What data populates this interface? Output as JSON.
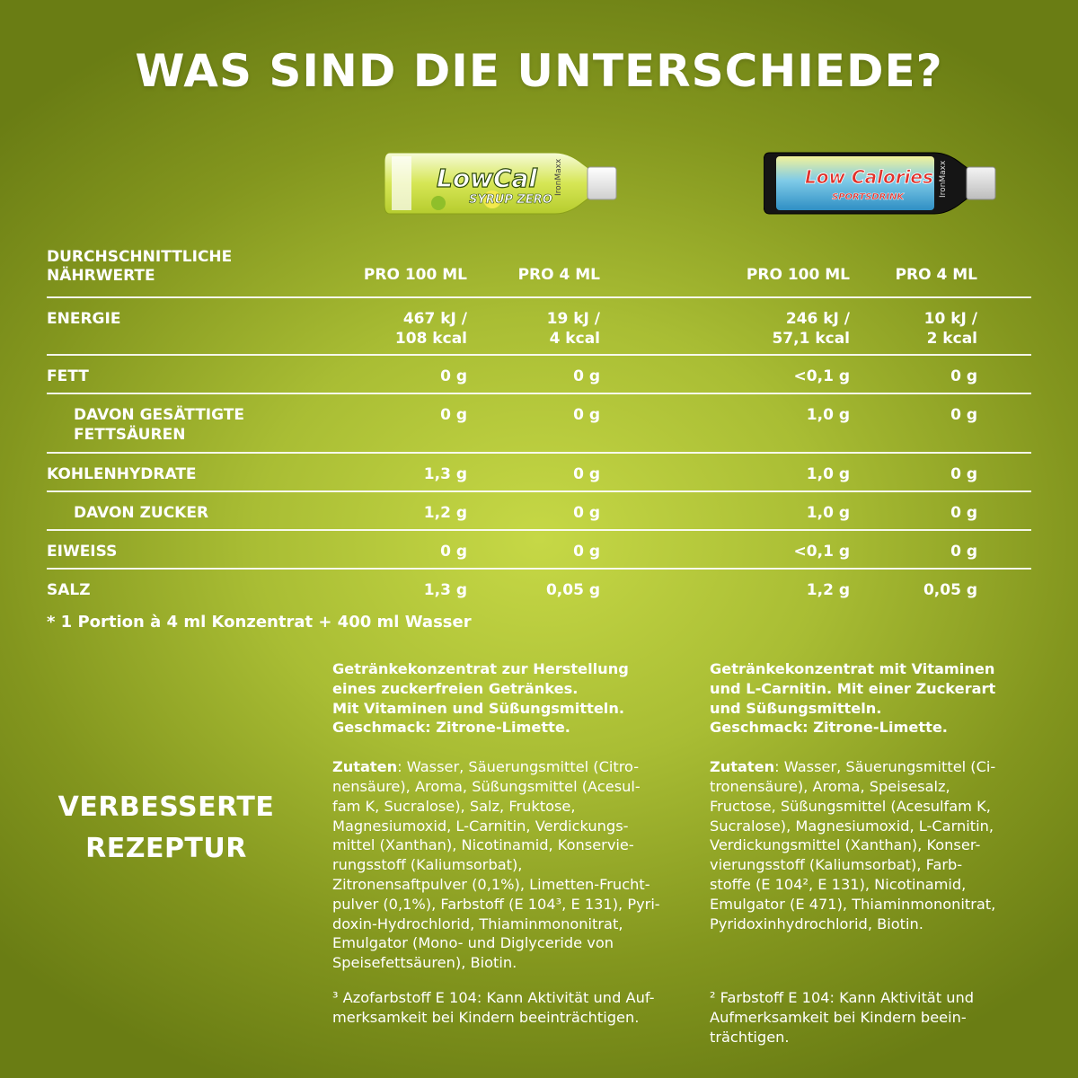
{
  "title": "WAS SIND DIE UNTERSCHIEDE?",
  "products": [
    {
      "brand": "LowCal",
      "sub": "SYRUP ZERO",
      "maker": "IronMaxx",
      "colors": {
        "cap": "#f2f2f2",
        "label": "#d9e85a",
        "text": "#ffffff"
      }
    },
    {
      "brand": "Low Calories",
      "sub": "SPORTSDRINK",
      "maker": "IronMaxx",
      "colors": {
        "cap": "#1b1b1b",
        "label": "#58b6e0",
        "text": "#e0312a"
      }
    }
  ],
  "table": {
    "header_label": "DURCHSCHNITTLICHE\nNÄHRWERTE",
    "columns": [
      "PRO 100 ML",
      "PRO 4 ML",
      "PRO 100 ML",
      "PRO 4 ML"
    ],
    "rows": [
      {
        "label": "ENERGIE",
        "values": [
          "467 kJ /\n108 kcal",
          "19 kJ /\n4 kcal",
          "246 kJ /\n57,1 kcal",
          "10 kJ /\n2 kcal"
        ]
      },
      {
        "label": "FETT",
        "values": [
          "0 g",
          "0 g",
          "<0,1 g",
          "0 g"
        ]
      },
      {
        "label": "DAVON GESÄTTIGTE\nFETTSÄUREN",
        "values": [
          "0 g",
          "0 g",
          "1,0 g",
          "0 g"
        ]
      },
      {
        "label": "KOHLENHYDRATE",
        "values": [
          "1,3 g",
          "0 g",
          "1,0 g",
          "0 g"
        ]
      },
      {
        "label": "DAVON ZUCKER",
        "values": [
          "1,2 g",
          "0 g",
          "1,0 g",
          "0 g"
        ]
      },
      {
        "label": "EIWEISS",
        "values": [
          "0 g",
          "0 g",
          "<0,1 g",
          "0 g"
        ]
      },
      {
        "label": "SALZ",
        "values": [
          "1,3 g",
          "0,05 g",
          "1,2 g",
          "0,05 g"
        ]
      }
    ],
    "footnote": "* 1 Portion à 4 ml Konzentrat + 400 ml Wasser"
  },
  "improved": "VERBESSERTE\nREZEPTUR",
  "left_text": {
    "description": "Getränkekonzentrat zur Herstellung\neines zuckerfreien Getränkes.\nMit Vitaminen und Süßungsmitteln.\nGeschmack: Zitrone-Limette.",
    "ingredients_label": "Zutaten",
    "ingredients": ": Wasser, Säuerungsmittel (Citro-\nnensäure), Aroma, Süßungsmittel (Acesul-\nfam K, Sucralose), Salz, Fruktose,\nMagnesiumoxid, L-Carnitin, Verdickungs-\nmittel (Xanthan), Nicotinamid, Konservie-\nrungsstoff (Kaliumsorbat),\nZitronensaftpulver (0,1%), Limetten-Frucht-\npulver (0,1%), Farbstoff (E 104³, E 131), Pyri-\ndoxin-Hydrochlorid, Thiaminmononitrat,\nEmulgator (Mono- und Diglyceride von\nSpeisefettsäuren), Biotin.",
    "footnote": "³ Azofarbstoff E 104: Kann Aktivität und Auf-\nmerksamkeit bei Kindern beeinträchtigen."
  },
  "right_text": {
    "description": "Getränkekonzentrat mit Vitaminen\nund L-Carnitin. Mit einer Zuckerart\nund Süßungsmitteln.\nGeschmack: Zitrone-Limette.",
    "ingredients_label": "Zutaten",
    "ingredients": ": Wasser, Säuerungsmittel (Ci-\ntronensäure), Aroma, Speisesalz,\nFructose, Süßungsmittel (Acesulfam K,\nSucralose), Magnesiumoxid, L-Carnitin,\nVerdickungsmittel (Xanthan), Konser-\nvierungsstoff (Kaliumsorbat), Farb-\nstoffe (E 104², E 131), Nicotinamid,\nEmulgator (E 471), Thiaminmononitrat,\nPyridoxinhydrochlorid, Biotin.",
    "footnote": "² Farbstoff E 104: Kann Aktivität und\nAufmerksamkeit bei Kindern beein-\nträchtigen."
  }
}
